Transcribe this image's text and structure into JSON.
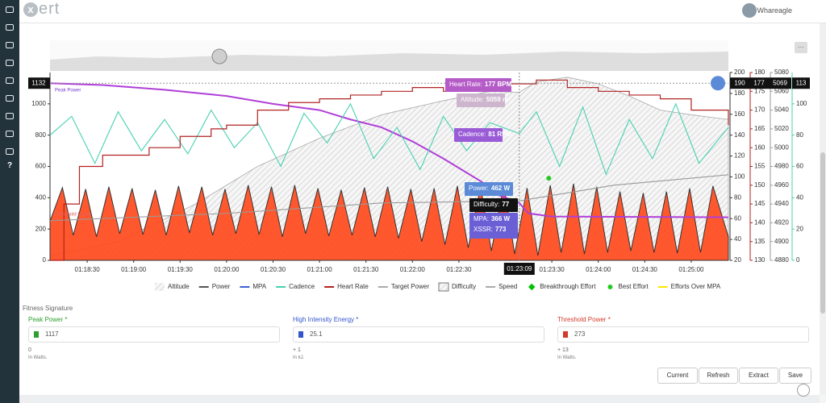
{
  "header": {
    "logo": "ert",
    "user": "Whareagle"
  },
  "sidebar": {
    "help": "?"
  },
  "overview_menu": "···",
  "chart_data": {
    "type": "combo",
    "xlim": [
      4686,
      5124
    ],
    "xticks": [
      {
        "value": 4710,
        "label": "01:18:30"
      },
      {
        "value": 4740,
        "label": "01:19:00"
      },
      {
        "value": 4770,
        "label": "01:19:30"
      },
      {
        "value": 4800,
        "label": "01:20:00"
      },
      {
        "value": 4830,
        "label": "01:20:30"
      },
      {
        "value": 4860,
        "label": "01:21:00"
      },
      {
        "value": 4890,
        "label": "01:21:30"
      },
      {
        "value": 4920,
        "label": "01:22:00"
      },
      {
        "value": 4950,
        "label": "01:22:30"
      },
      {
        "value": 5010,
        "label": "01:23:30"
      },
      {
        "value": 5040,
        "label": "01:24:00"
      },
      {
        "value": 5070,
        "label": "01:24:30"
      },
      {
        "value": 5100,
        "label": "01:25:00"
      }
    ],
    "ylim": [
      0,
      1200
    ],
    "yticks": [
      0,
      200,
      400,
      600,
      800,
      1000
    ],
    "right_axes": [
      {
        "lim": [
          20,
          200
        ],
        "ticks": [
          20,
          40,
          60,
          80,
          100,
          120,
          140,
          160,
          180,
          200
        ],
        "color": "#333333"
      },
      {
        "lim": [
          130,
          180
        ],
        "ticks": [
          130,
          135,
          140,
          145,
          150,
          155,
          160,
          165,
          170,
          175,
          180
        ],
        "color": "#b22222"
      },
      {
        "lim": [
          4880,
          5080
        ],
        "ticks": [
          4880,
          4900,
          4920,
          4940,
          4960,
          4980,
          5000,
          5020,
          5040,
          5060,
          5080
        ],
        "color": "#999999"
      },
      {
        "lim": [
          0,
          120
        ],
        "ticks": [
          0,
          20,
          40,
          60,
          80,
          100
        ],
        "color": "#48d1b0"
      }
    ],
    "annotations": [
      "Peak Power",
      "Threshold Power"
    ],
    "flags": {
      "left": 1132,
      "right": [
        190,
        177,
        5069,
        113
      ]
    },
    "cursor": {
      "x": 4989,
      "label": "01:23:09"
    },
    "tooltips": [
      {
        "lines": [
          {
            "label": "Heart Rate:",
            "value": "177 BPM"
          }
        ],
        "color": "#b45bc8"
      },
      {
        "lines": [
          {
            "label": "Altitude:",
            "value": "5059 m"
          }
        ],
        "color": "#cdb5cd"
      },
      {
        "lines": [
          {
            "label": "Cadence:",
            "value": "81 RPM"
          }
        ],
        "color": "#9a5cd6"
      },
      {
        "lines": [
          {
            "label": "Power:",
            "value": "462 W"
          }
        ],
        "color": "#5b8ad6"
      },
      {
        "lines": [
          {
            "label": "Difficulty:",
            "value": "77"
          }
        ],
        "color": "#111111"
      },
      {
        "lines": [
          {
            "label": "MPA:",
            "value": "366 W"
          },
          {
            "label": "XSSR:",
            "value": "773"
          }
        ],
        "color": "#6b5fd6"
      }
    ],
    "series": [
      {
        "name": "Altitude",
        "marker": "hatch-line",
        "color": "#aaaaaa",
        "axis": 2,
        "kind": "area",
        "x": [
          4686,
          4730,
          4780,
          4820,
          4860,
          4900,
          4940,
          4970,
          4989,
          5000,
          5020,
          5040,
          5060,
          5080,
          5100,
          5124
        ],
        "values": [
          4885,
          4900,
          4940,
          4980,
          5010,
          5035,
          5050,
          5060,
          5059,
          5070,
          5075,
          5068,
          5055,
          5040,
          5035,
          5030
        ]
      },
      {
        "name": "Power",
        "marker": "line",
        "color": "#555555",
        "fill": "#ff4a1c",
        "axis": "y",
        "kind": "area",
        "x": [
          4686,
          4694,
          4701,
          4709,
          4716,
          4724,
          4731,
          4739,
          4746,
          4754,
          4761,
          4769,
          4776,
          4784,
          4791,
          4799,
          4806,
          4814,
          4821,
          4829,
          4836,
          4844,
          4851,
          4859,
          4866,
          4874,
          4881,
          4889,
          4896,
          4904,
          4911,
          4919,
          4926,
          4934,
          4941,
          4949,
          4956,
          4964,
          4971,
          4979,
          4986,
          4994,
          5001,
          5009,
          5016,
          5024,
          5031,
          5039,
          5046,
          5054,
          5061,
          5069,
          5076,
          5084,
          5091,
          5099,
          5106,
          5114,
          5124
        ],
        "values": [
          250,
          465,
          160,
          455,
          150,
          470,
          170,
          460,
          165,
          450,
          160,
          475,
          175,
          470,
          160,
          455,
          170,
          480,
          165,
          470,
          150,
          480,
          170,
          460,
          155,
          450,
          160,
          465,
          150,
          470,
          140,
          455,
          120,
          460,
          100,
          475,
          80,
          470,
          60,
          485,
          40,
          462,
          30,
          480,
          50,
          490,
          40,
          470,
          50,
          440,
          60,
          430,
          50,
          440,
          45,
          460,
          50,
          475,
          150
        ]
      },
      {
        "name": "MPA",
        "marker": "line",
        "color": "#3f5fd0",
        "line_color": "#b03fd8",
        "axis": "y",
        "kind": "line",
        "x": [
          4686,
          4720,
          4760,
          4800,
          4830,
          4860,
          4880,
          4900,
          4920,
          4940,
          4955,
          4965,
          4975,
          4989,
          4995,
          5010,
          5124
        ],
        "values": [
          1132,
          1120,
          1090,
          1050,
          1000,
          960,
          900,
          850,
          760,
          650,
          560,
          500,
          420,
          366,
          300,
          280,
          275
        ]
      },
      {
        "name": "Cadence",
        "marker": "line",
        "color": "#48d1b0",
        "axis": 3,
        "kind": "line",
        "x": [
          4686,
          4700,
          4715,
          4730,
          4745,
          4760,
          4775,
          4790,
          4805,
          4820,
          4835,
          4850,
          4865,
          4880,
          4895,
          4910,
          4925,
          4940,
          4955,
          4970,
          4989,
          5000,
          5015,
          5030,
          5045,
          5060,
          5075,
          5090,
          5105,
          5124
        ],
        "values": [
          80,
          92,
          62,
          95,
          70,
          90,
          68,
          96,
          72,
          88,
          60,
          94,
          75,
          100,
          65,
          85,
          58,
          92,
          70,
          88,
          81,
          95,
          60,
          98,
          55,
          90,
          65,
          100,
          62,
          85
        ]
      },
      {
        "name": "Heart Rate",
        "marker": "line",
        "color": "#b22222",
        "axis": 1,
        "kind": "step",
        "x": [
          4686,
          4695,
          4705,
          4720,
          4750,
          4770,
          4790,
          4800,
          4820,
          4840,
          4860,
          4880,
          4900,
          4920,
          4940,
          4960,
          4975,
          4989,
          5000,
          5020,
          5040,
          5060,
          5080,
          5100,
          5124
        ],
        "values": [
          130,
          145,
          155,
          158,
          160,
          163,
          165,
          166,
          170,
          172,
          173,
          174,
          175,
          176,
          175,
          176,
          177,
          177,
          178,
          176,
          175,
          174,
          173,
          170,
          166
        ]
      },
      {
        "name": "Target Power",
        "marker": "line",
        "color": "#aaaaaa"
      },
      {
        "name": "Difficulty",
        "marker": "hatch-box",
        "color": "#999999",
        "axis": 0,
        "kind": "line",
        "x": [
          4686,
          4800,
          4900,
          4989,
          5050,
          5124
        ],
        "values": [
          58,
          65,
          75,
          77,
          92,
          102
        ]
      },
      {
        "name": "Speed",
        "marker": "line",
        "color": "#aaaaaa"
      },
      {
        "name": "Breakthrough Effort",
        "marker": "diamond",
        "color": "#00c000"
      },
      {
        "name": "Best Effort",
        "marker": "dot",
        "color": "#22cc22",
        "axis": "y",
        "kind": "points",
        "x": [
          5008
        ],
        "values": [
          525
        ]
      },
      {
        "name": "Efforts Over MPA",
        "marker": "line",
        "color": "#ffe600"
      }
    ]
  },
  "fitness": {
    "title": "Fitness Signature",
    "fields": [
      {
        "label": "Peak Power *",
        "color": "#2e9e2e",
        "value": "1117",
        "delta": "0",
        "unit": "In Watts."
      },
      {
        "label": "High Intensity Energy *",
        "color": "#3355cc",
        "value": "25.1",
        "delta": "+ 1",
        "unit": "In kJ."
      },
      {
        "label": "Threshold Power *",
        "color": "#d33a2c",
        "value": "273",
        "delta": "+ 13",
        "unit": "In Watts."
      }
    ]
  },
  "buttons": [
    "Current",
    "Refresh",
    "Extract",
    "Save"
  ]
}
